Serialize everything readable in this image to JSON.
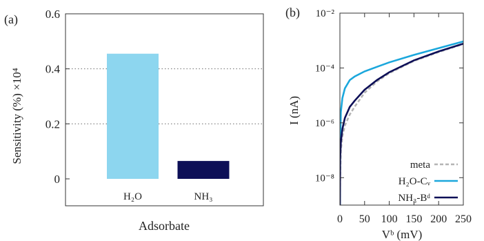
{
  "panels": {
    "a": {
      "label": "(a)"
    },
    "b": {
      "label": "(b)"
    }
  },
  "chart_data": [
    {
      "type": "bar",
      "panel": "a",
      "categories": [
        "H₂O",
        "NH₃"
      ],
      "values": [
        0.455,
        0.065
      ],
      "colors": [
        "#8dd6ef",
        "#0d0f57"
      ],
      "ylabel": "Sensitivity (%) ×10⁴",
      "xlabel": "Adsorbate",
      "ylim": [
        0,
        0.6
      ],
      "yticks": [
        0,
        0.2,
        0.4,
        0.6
      ],
      "ytick_labels": [
        "0",
        "0.2",
        "0.4",
        "0.6"
      ],
      "grid": "horizontal dotted"
    },
    {
      "type": "line",
      "panel": "b",
      "xlabel": "Vᵇ (mV)",
      "ylabel": "I (nA)",
      "xlim": [
        0,
        250
      ],
      "ylim": [
        1e-09,
        0.01
      ],
      "yscale": "log",
      "xticks": [
        0,
        50,
        100,
        150,
        200,
        250
      ],
      "xtick_labels": [
        "0",
        "50",
        "100",
        "150",
        "200",
        "250"
      ],
      "yticks": [
        1e-08,
        1e-06,
        0.0001,
        0.01
      ],
      "ytick_labels": [
        "10⁻⁸",
        "10⁻⁶",
        "10⁻⁴",
        "10⁻²"
      ],
      "legend_position": "bottom-right",
      "series": [
        {
          "name": "meta",
          "color": "#b4b4b4",
          "dash": "dashed",
          "x": [
            0.5,
            2,
            5,
            10,
            20,
            30,
            50,
            75,
            100,
            150,
            200,
            250
          ],
          "y": [
            1.2e-08,
            1e-07,
            3.2e-07,
            8e-07,
            2e-06,
            3.9e-06,
            1.25e-05,
            3.2e-05,
            6.5e-05,
            0.00018,
            0.00038,
            0.00075
          ]
        },
        {
          "name": "H₂O-Cᵥ",
          "color": "#1ba7dc",
          "dash": "solid",
          "x": [
            0.5,
            2,
            5,
            10,
            20,
            30,
            50,
            75,
            100,
            150,
            200,
            250
          ],
          "y": [
            1.5e-07,
            2.5e-06,
            8e-06,
            1.8e-05,
            3.6e-05,
            4.9e-05,
            7.5e-05,
            0.00011,
            0.00016,
            0.0003,
            0.00053,
            0.00093
          ]
        },
        {
          "name": "NH₃-Bᵈ",
          "color": "#0d0f57",
          "dash": "solid",
          "x": [
            0.5,
            2,
            5,
            10,
            20,
            30,
            50,
            75,
            100,
            150,
            200,
            250
          ],
          "y": [
            5e-08,
            2e-07,
            6e-07,
            1.5e-06,
            3.8e-06,
            6.4e-06,
            1.6e-05,
            3.6e-05,
            7e-05,
            0.00019,
            0.0004,
            0.00077
          ]
        }
      ]
    }
  ]
}
